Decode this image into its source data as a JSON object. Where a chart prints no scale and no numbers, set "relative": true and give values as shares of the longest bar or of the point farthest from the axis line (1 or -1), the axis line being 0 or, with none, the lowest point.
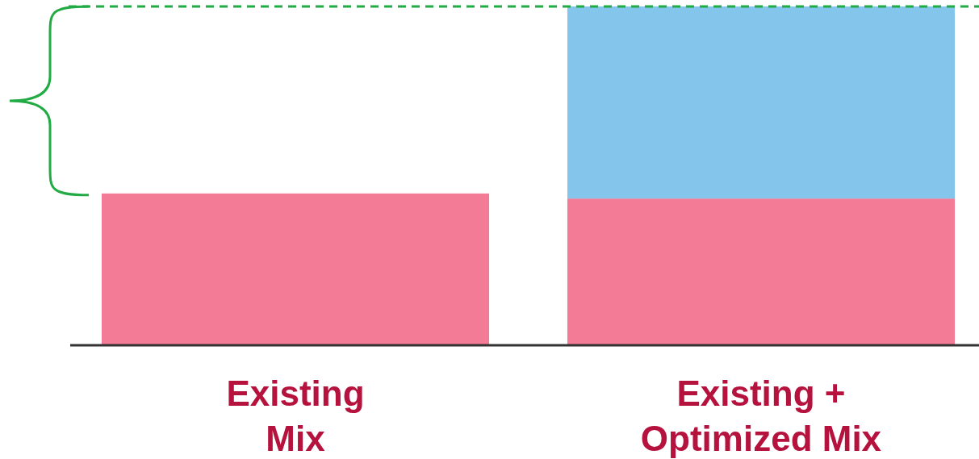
{
  "chart_data": {
    "type": "bar",
    "stacked": true,
    "relative": true,
    "categories": [
      "Existing Mix",
      "Existing + Optimized Mix"
    ],
    "series": [
      {
        "color": "#f37b95",
        "values": [
          0.448,
          0.433
        ]
      },
      {
        "color": "#83c5eb",
        "values": [
          null,
          0.567
        ]
      }
    ],
    "ref_lines": [
      {
        "axis": "y",
        "value": 1,
        "color": "#22aa44",
        "line_style": "dashed"
      }
    ]
  }
}
